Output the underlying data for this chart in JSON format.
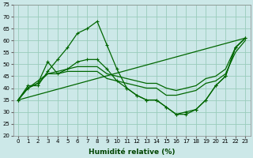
{
  "title": "",
  "xlabel": "Humidité relative (%)",
  "ylabel": "",
  "xlim": [
    -0.5,
    23.5
  ],
  "ylim": [
    20,
    75
  ],
  "yticks": [
    20,
    25,
    30,
    35,
    40,
    45,
    50,
    55,
    60,
    65,
    70,
    75
  ],
  "xticks": [
    0,
    1,
    2,
    3,
    4,
    5,
    6,
    7,
    8,
    9,
    10,
    11,
    12,
    13,
    14,
    15,
    16,
    17,
    18,
    19,
    20,
    21,
    22,
    23
  ],
  "bg_color": "#cce8e8",
  "grid_color": "#99ccbb",
  "line_color": "#006600",
  "markersize": 3.0,
  "linewidth": 0.9,
  "lines": [
    {
      "x": [
        0,
        1,
        2,
        3,
        4,
        5,
        6,
        7,
        8,
        9,
        10,
        11,
        12,
        13,
        14,
        15,
        16,
        17,
        18,
        19,
        20,
        21,
        22,
        23
      ],
      "y": [
        35,
        41,
        41,
        47,
        52,
        57,
        63,
        65,
        68,
        58,
        48,
        40,
        37,
        35,
        35,
        32,
        29,
        29,
        31,
        35,
        41,
        45,
        57,
        61
      ],
      "has_markers": true
    },
    {
      "x": [
        0,
        1,
        2,
        3,
        4,
        5,
        6,
        7,
        8,
        9,
        10,
        11,
        12,
        13,
        14,
        15,
        16,
        17,
        18,
        19,
        20,
        21,
        22,
        23
      ],
      "y": [
        35,
        40,
        42,
        46,
        46,
        47,
        47,
        47,
        47,
        44,
        43,
        42,
        41,
        40,
        40,
        37,
        37,
        38,
        39,
        42,
        43,
        46,
        55,
        60
      ],
      "has_markers": false
    },
    {
      "x": [
        0,
        1,
        2,
        3,
        4,
        5,
        6,
        7,
        8,
        9,
        10,
        11,
        12,
        13,
        14,
        15,
        16,
        17,
        18,
        19,
        20,
        21,
        22,
        23
      ],
      "y": [
        35,
        40,
        43,
        46,
        47,
        48,
        49,
        49,
        49,
        46,
        45,
        44,
        43,
        42,
        42,
        40,
        39,
        40,
        41,
        44,
        45,
        48,
        57,
        61
      ],
      "has_markers": false
    },
    {
      "x": [
        0,
        23
      ],
      "y": [
        35,
        61
      ],
      "has_markers": false
    },
    {
      "x": [
        0,
        1,
        2,
        3,
        4,
        5,
        6,
        7,
        8,
        9,
        10,
        11,
        12,
        13,
        14,
        15,
        16,
        17,
        18,
        19,
        20,
        21,
        22,
        23
      ],
      "y": [
        35,
        40,
        42,
        51,
        46,
        48,
        51,
        52,
        52,
        48,
        43,
        40,
        37,
        35,
        35,
        32,
        29,
        30,
        31,
        35,
        41,
        45,
        57,
        61
      ],
      "has_markers": true
    }
  ]
}
